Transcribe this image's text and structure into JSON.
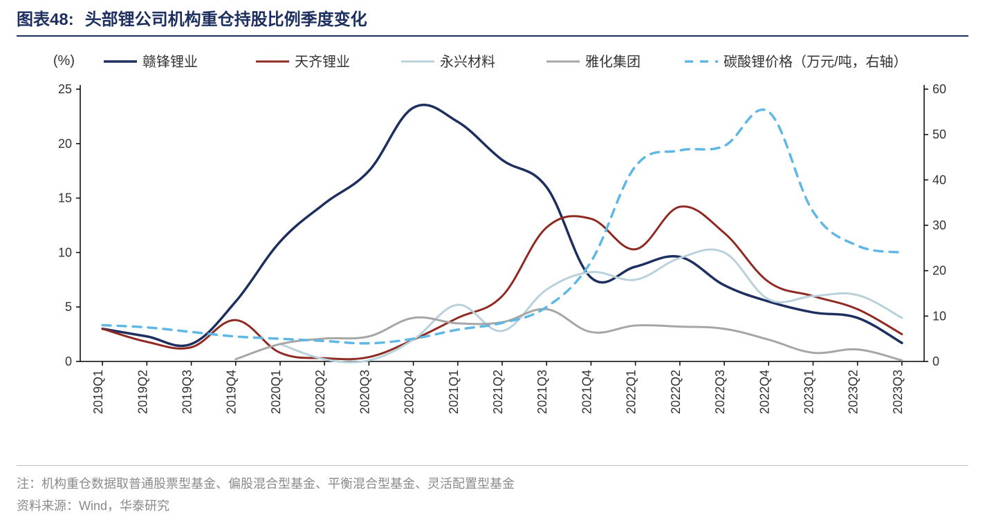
{
  "title_prefix": "图表48:",
  "title_text": "头部锂公司机构重仓持股比例季度变化",
  "title_color": "#1d2f5f",
  "title_rule_color": "#1d2f5f",
  "footnote1": "注：机构重仓数据取普通股票型基金、偏股混合型基金、平衡混合型基金、灵活配置型基金",
  "footnote2": "资料来源：Wind，华泰研究",
  "footnote_color": "#8a8a8a",
  "footnote_rule_color": "#bcbcbc",
  "chart": {
    "type": "line",
    "background_color": "#ffffff",
    "plot_border_color": "#000000",
    "plot_border_width": 1.5,
    "tick_color": "#000000",
    "tick_length": 6,
    "axis_font_size": 18,
    "axis_font_color": "#333333",
    "legend_font_size": 20,
    "legend_font_color": "#333333",
    "y_left": {
      "label": "(%)",
      "min": 0,
      "max": 25,
      "step": 5
    },
    "y_right": {
      "min": 0,
      "max": 60,
      "step": 10
    },
    "categories": [
      "2019Q1",
      "2019Q2",
      "2019Q3",
      "2019Q4",
      "2020Q1",
      "2020Q2",
      "2020Q3",
      "2020Q4",
      "2021Q1",
      "2021Q2",
      "2021Q3",
      "2021Q4",
      "2022Q1",
      "2022Q2",
      "2022Q3",
      "2022Q4",
      "2023Q1",
      "2023Q2",
      "2023Q3"
    ],
    "series": [
      {
        "name": "赣锋锂业",
        "axis": "left",
        "color": "#1d2f5f",
        "width": 3.5,
        "dash": null,
        "values": [
          3.0,
          2.3,
          1.6,
          5.5,
          11.0,
          14.5,
          17.5,
          23.3,
          22.0,
          18.5,
          16.0,
          7.7,
          8.7,
          9.6,
          7.0,
          5.5,
          4.5,
          4.0,
          1.7
        ]
      },
      {
        "name": "天齐锂业",
        "axis": "left",
        "color": "#8f2a22",
        "width": 3.0,
        "dash": null,
        "values": [
          3.0,
          1.8,
          1.3,
          3.8,
          0.8,
          0.3,
          0.4,
          2.0,
          4.0,
          6.0,
          12.3,
          13.1,
          10.3,
          14.2,
          11.8,
          7.3,
          6.0,
          4.8,
          2.5
        ]
      },
      {
        "name": "永兴材料",
        "axis": "left",
        "color": "#b8d1da",
        "width": 3.0,
        "dash": null,
        "values": [
          null,
          null,
          null,
          null,
          1.6,
          0.2,
          0.1,
          2.0,
          5.2,
          2.8,
          6.6,
          8.2,
          7.5,
          9.5,
          10.0,
          5.7,
          6.0,
          6.1,
          4.0
        ]
      },
      {
        "name": "雅化集团",
        "axis": "left",
        "color": "#a6a6a6",
        "width": 3.0,
        "dash": null,
        "values": [
          null,
          null,
          null,
          0.2,
          1.6,
          2.1,
          2.3,
          4.0,
          3.5,
          3.6,
          4.8,
          2.7,
          3.3,
          3.2,
          3.0,
          2.0,
          0.8,
          1.1,
          0.1
        ]
      },
      {
        "name": "碳酸锂价格（万元/吨，右轴）",
        "axis": "right",
        "color": "#5fb7e5",
        "width": 3.5,
        "dash": "12,10",
        "values": [
          8.0,
          7.5,
          6.5,
          5.5,
          5.0,
          4.5,
          4.0,
          5.0,
          7.0,
          8.5,
          12.0,
          22.0,
          43.0,
          46.5,
          47.5,
          55.0,
          33.0,
          25.5,
          24.0
        ]
      }
    ]
  }
}
